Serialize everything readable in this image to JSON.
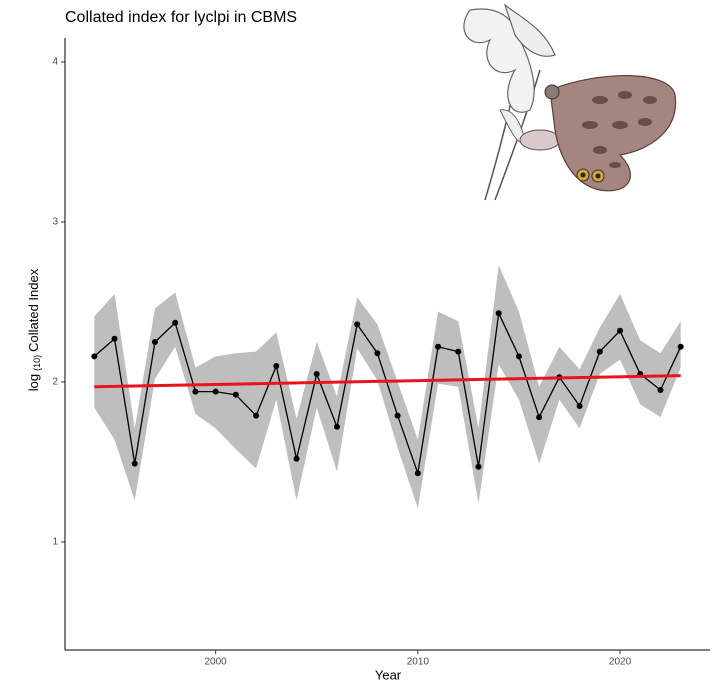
{
  "chart_data": {
    "type": "line",
    "title": "Collated index for lyclpi in CBMS",
    "x_label": "Year",
    "y_label": [
      "log",
      "(10)",
      "Collated Index"
    ],
    "x": [
      1994,
      1995,
      1996,
      1997,
      1998,
      1999,
      2000,
      2001,
      2002,
      2003,
      2004,
      2005,
      2006,
      2007,
      2008,
      2009,
      2010,
      2011,
      2012,
      2013,
      2014,
      2015,
      2016,
      2017,
      2018,
      2019,
      2020,
      2021,
      2022,
      2023
    ],
    "series": [
      {
        "color": "#000000",
        "values": [
          2.16,
          2.27,
          1.49,
          2.25,
          2.37,
          1.94,
          1.94,
          1.92,
          1.79,
          2.1,
          1.52,
          2.05,
          1.72,
          2.36,
          2.18,
          1.79,
          1.43,
          2.22,
          2.19,
          1.47,
          2.43,
          2.16,
          1.78,
          2.03,
          1.85,
          2.19,
          2.32,
          2.05,
          1.95,
          2.22
        ]
      }
    ],
    "band": {
      "color": "#bebebe",
      "upper": [
        2.41,
        2.55,
        1.71,
        2.46,
        2.56,
        2.09,
        2.16,
        2.18,
        2.19,
        2.31,
        1.77,
        2.25,
        1.91,
        2.53,
        2.36,
        2.0,
        1.64,
        2.44,
        2.38,
        1.71,
        2.73,
        2.44,
        1.97,
        2.22,
        2.08,
        2.34,
        2.55,
        2.26,
        2.18,
        2.38
      ],
      "lower": [
        1.84,
        1.64,
        1.26,
        2.02,
        2.22,
        1.8,
        1.71,
        1.58,
        1.46,
        1.89,
        1.26,
        1.84,
        1.44,
        2.21,
        2.01,
        1.59,
        1.21,
        1.99,
        1.97,
        1.24,
        2.11,
        1.89,
        1.49,
        1.89,
        1.71,
        2.05,
        2.14,
        1.86,
        1.78,
        2.09
      ]
    },
    "trend": {
      "color": "#e8141b",
      "x": [
        1994,
        2023
      ],
      "values": [
        1.97,
        2.04
      ]
    },
    "xlim": [
      1992.55,
      2024.45
    ],
    "ylim": [
      0.325,
      4.15
    ],
    "xticks": [
      2000,
      2010,
      2020
    ],
    "yticks": [
      1,
      2,
      3,
      4
    ],
    "grid": false
  }
}
